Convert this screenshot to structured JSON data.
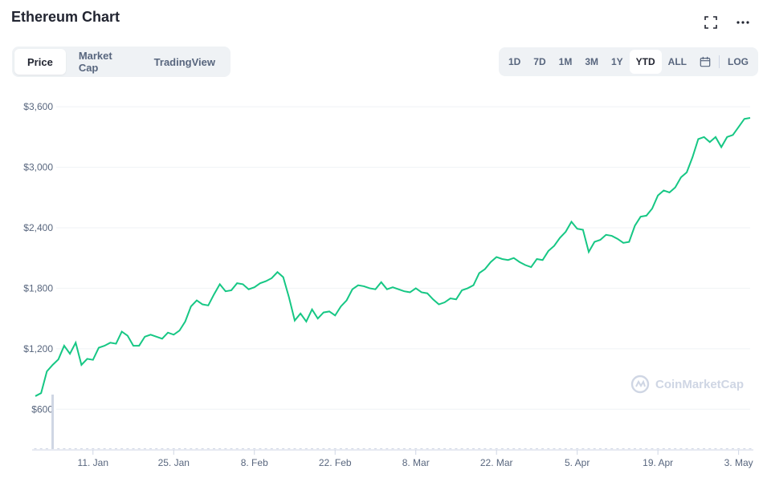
{
  "header": {
    "title": "Ethereum Chart"
  },
  "icons": {
    "expand": "expand-icon",
    "more": "more-icon",
    "calendar": "calendar-icon",
    "watermark_logo": "coinmarketcap-logo-icon"
  },
  "tabs": [
    {
      "label": "Price",
      "active": true
    },
    {
      "label": "Market Cap",
      "active": false
    },
    {
      "label": "TradingView",
      "active": false
    }
  ],
  "ranges": {
    "items": [
      "1D",
      "7D",
      "1M",
      "3M",
      "1Y",
      "YTD",
      "ALL"
    ],
    "active": "YTD",
    "log_label": "LOG"
  },
  "watermark": "CoinMarketCap",
  "colors": {
    "line": "#16c784",
    "volume": "#cfd6e4",
    "grid": "#eff2f5",
    "text": "#58667e"
  },
  "chart_data": {
    "type": "line",
    "title": "",
    "xlabel": "",
    "ylabel": "",
    "ylim": [
      300,
      3800
    ],
    "y_ticks": [
      600,
      1200,
      1800,
      2400,
      3000,
      3600
    ],
    "y_tick_labels": [
      "$600",
      "$1,200",
      "$1,800",
      "$2,400",
      "$3,000",
      "$3,600"
    ],
    "x_tick_labels": [
      "11. Jan",
      "25. Jan",
      "8. Feb",
      "22. Feb",
      "8. Mar",
      "22. Mar",
      "5. Apr",
      "19. Apr",
      "3. May"
    ],
    "x_tick_days": [
      10,
      24,
      38,
      52,
      66,
      80,
      94,
      108,
      122
    ],
    "grid": true,
    "legend": "none",
    "series": [
      {
        "x": [
          0,
          1,
          2,
          3,
          4,
          5,
          6,
          7,
          8,
          9,
          10,
          11,
          12,
          13,
          14,
          15,
          16,
          17,
          18,
          19,
          20,
          21,
          22,
          23,
          24,
          25,
          26,
          27,
          28,
          29,
          30,
          31,
          32,
          33,
          34,
          35,
          36,
          37,
          38,
          39,
          40,
          41,
          42,
          43,
          44,
          45,
          46,
          47,
          48,
          49,
          50,
          51,
          52,
          53,
          54,
          55,
          56,
          57,
          58,
          59,
          60,
          61,
          62,
          63,
          64,
          65,
          66,
          67,
          68,
          69,
          70,
          71,
          72,
          73,
          74,
          75,
          76,
          77,
          78,
          79,
          80,
          81,
          82,
          83,
          84,
          85,
          86,
          87,
          88,
          89,
          90,
          91,
          92,
          93,
          94,
          95,
          96,
          97,
          98,
          99,
          100,
          101,
          102,
          103,
          104,
          105,
          106,
          107,
          108,
          109,
          110,
          111,
          112,
          113,
          114,
          115,
          116,
          117,
          118,
          119,
          120,
          121,
          122,
          123,
          124
        ],
        "values": [
          730,
          760,
          975,
          1040,
          1095,
          1230,
          1150,
          1260,
          1040,
          1100,
          1090,
          1210,
          1230,
          1260,
          1250,
          1370,
          1330,
          1230,
          1230,
          1320,
          1340,
          1320,
          1300,
          1360,
          1340,
          1380,
          1470,
          1620,
          1680,
          1640,
          1630,
          1740,
          1840,
          1770,
          1780,
          1850,
          1840,
          1790,
          1810,
          1850,
          1870,
          1900,
          1960,
          1910,
          1710,
          1480,
          1550,
          1470,
          1590,
          1500,
          1560,
          1570,
          1530,
          1620,
          1680,
          1790,
          1830,
          1820,
          1800,
          1790,
          1860,
          1790,
          1810,
          1790,
          1770,
          1760,
          1800,
          1760,
          1750,
          1690,
          1640,
          1660,
          1700,
          1690,
          1780,
          1800,
          1830,
          1950,
          1990,
          2060,
          2110,
          2090,
          2080,
          2100,
          2060,
          2030,
          2010,
          2090,
          2080,
          2170,
          2220,
          2300,
          2360,
          2460,
          2390,
          2380,
          2160,
          2260,
          2280,
          2330,
          2320,
          2290,
          2250,
          2260,
          2420,
          2510,
          2520,
          2590,
          2720,
          2770,
          2750,
          2800,
          2900,
          2950,
          3100,
          3280,
          3300,
          3250,
          3300,
          3200,
          3300,
          3320,
          3400,
          3480,
          3490
        ],
        "volume": [
          0,
          0,
          0,
          1,
          0,
          0,
          0,
          0,
          0,
          0,
          0,
          0,
          0,
          0,
          0,
          0,
          0,
          0,
          0,
          0,
          0,
          0,
          0,
          0,
          0,
          0,
          0,
          0,
          0,
          0,
          0,
          0,
          0,
          0,
          0,
          0,
          0,
          0,
          0,
          0,
          0,
          0,
          0,
          0,
          0,
          0,
          0,
          0,
          0,
          0,
          0,
          0,
          0,
          0,
          0,
          0,
          0,
          0,
          0,
          0,
          0,
          0,
          0,
          0,
          0,
          0,
          0,
          0,
          0,
          0,
          0,
          0,
          0,
          0,
          0,
          0,
          0,
          0,
          0,
          0,
          0,
          0,
          0,
          0,
          0,
          0,
          0,
          0,
          0,
          0,
          0,
          0,
          0,
          0,
          0,
          0,
          0,
          0,
          0,
          0,
          0,
          0,
          0,
          0,
          0,
          0,
          0,
          0,
          0,
          0,
          0,
          0,
          0,
          0,
          0,
          0,
          0,
          0,
          0,
          0,
          0,
          0,
          0,
          0,
          0
        ]
      }
    ]
  }
}
